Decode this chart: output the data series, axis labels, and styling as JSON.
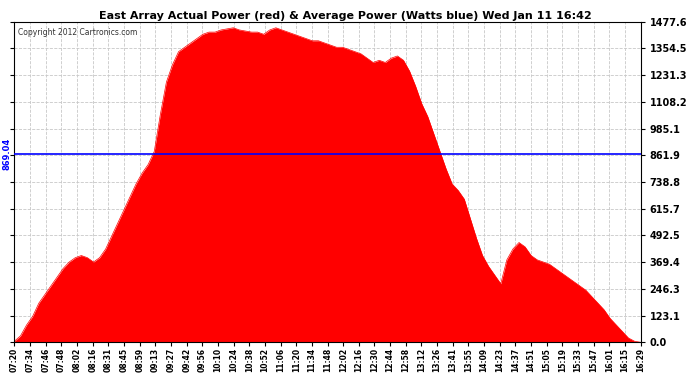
{
  "title": "East Array Actual Power (red) & Average Power (Watts blue) Wed Jan 11 16:42",
  "copyright": "Copyright 2012 Cartronics.com",
  "avg_power": 869.04,
  "ymax": 1477.6,
  "yticks": [
    0.0,
    123.1,
    246.3,
    369.4,
    492.5,
    615.7,
    738.8,
    861.9,
    985.1,
    1108.2,
    1231.3,
    1354.5,
    1477.6
  ],
  "bg_color": "#ffffff",
  "fill_color": "#ff0000",
  "line_color": "#0000ff",
  "grid_color": "#c8c8c8",
  "time_labels": [
    "07:20",
    "07:34",
    "07:46",
    "07:48",
    "08:02",
    "08:16",
    "08:31",
    "08:45",
    "08:59",
    "09:13",
    "09:27",
    "09:42",
    "09:56",
    "10:10",
    "10:24",
    "10:38",
    "10:52",
    "11:06",
    "11:20",
    "11:34",
    "11:48",
    "12:02",
    "12:16",
    "12:30",
    "12:44",
    "12:58",
    "13:12",
    "13:26",
    "13:41",
    "13:55",
    "14:09",
    "14:23",
    "14:37",
    "14:51",
    "15:05",
    "15:19",
    "15:33",
    "15:47",
    "16:01",
    "16:15",
    "16:29"
  ],
  "power_values": [
    5,
    30,
    80,
    120,
    180,
    220,
    260,
    300,
    340,
    370,
    390,
    400,
    390,
    370,
    390,
    430,
    490,
    550,
    610,
    670,
    730,
    780,
    820,
    880,
    1050,
    1200,
    1280,
    1340,
    1360,
    1380,
    1400,
    1420,
    1430,
    1430,
    1440,
    1445,
    1450,
    1440,
    1435,
    1430,
    1430,
    1420,
    1440,
    1450,
    1440,
    1430,
    1420,
    1410,
    1400,
    1390,
    1390,
    1380,
    1370,
    1360,
    1360,
    1350,
    1340,
    1330,
    1310,
    1290,
    1300,
    1290,
    1310,
    1320,
    1300,
    1250,
    1180,
    1100,
    1040,
    960,
    880,
    800,
    730,
    700,
    660,
    570,
    480,
    400,
    350,
    310,
    270,
    380,
    430,
    460,
    440,
    400,
    380,
    370,
    360,
    340,
    320,
    300,
    280,
    260,
    240,
    210,
    180,
    150,
    110,
    80,
    50,
    20,
    5,
    0
  ],
  "n_ticks": 41
}
